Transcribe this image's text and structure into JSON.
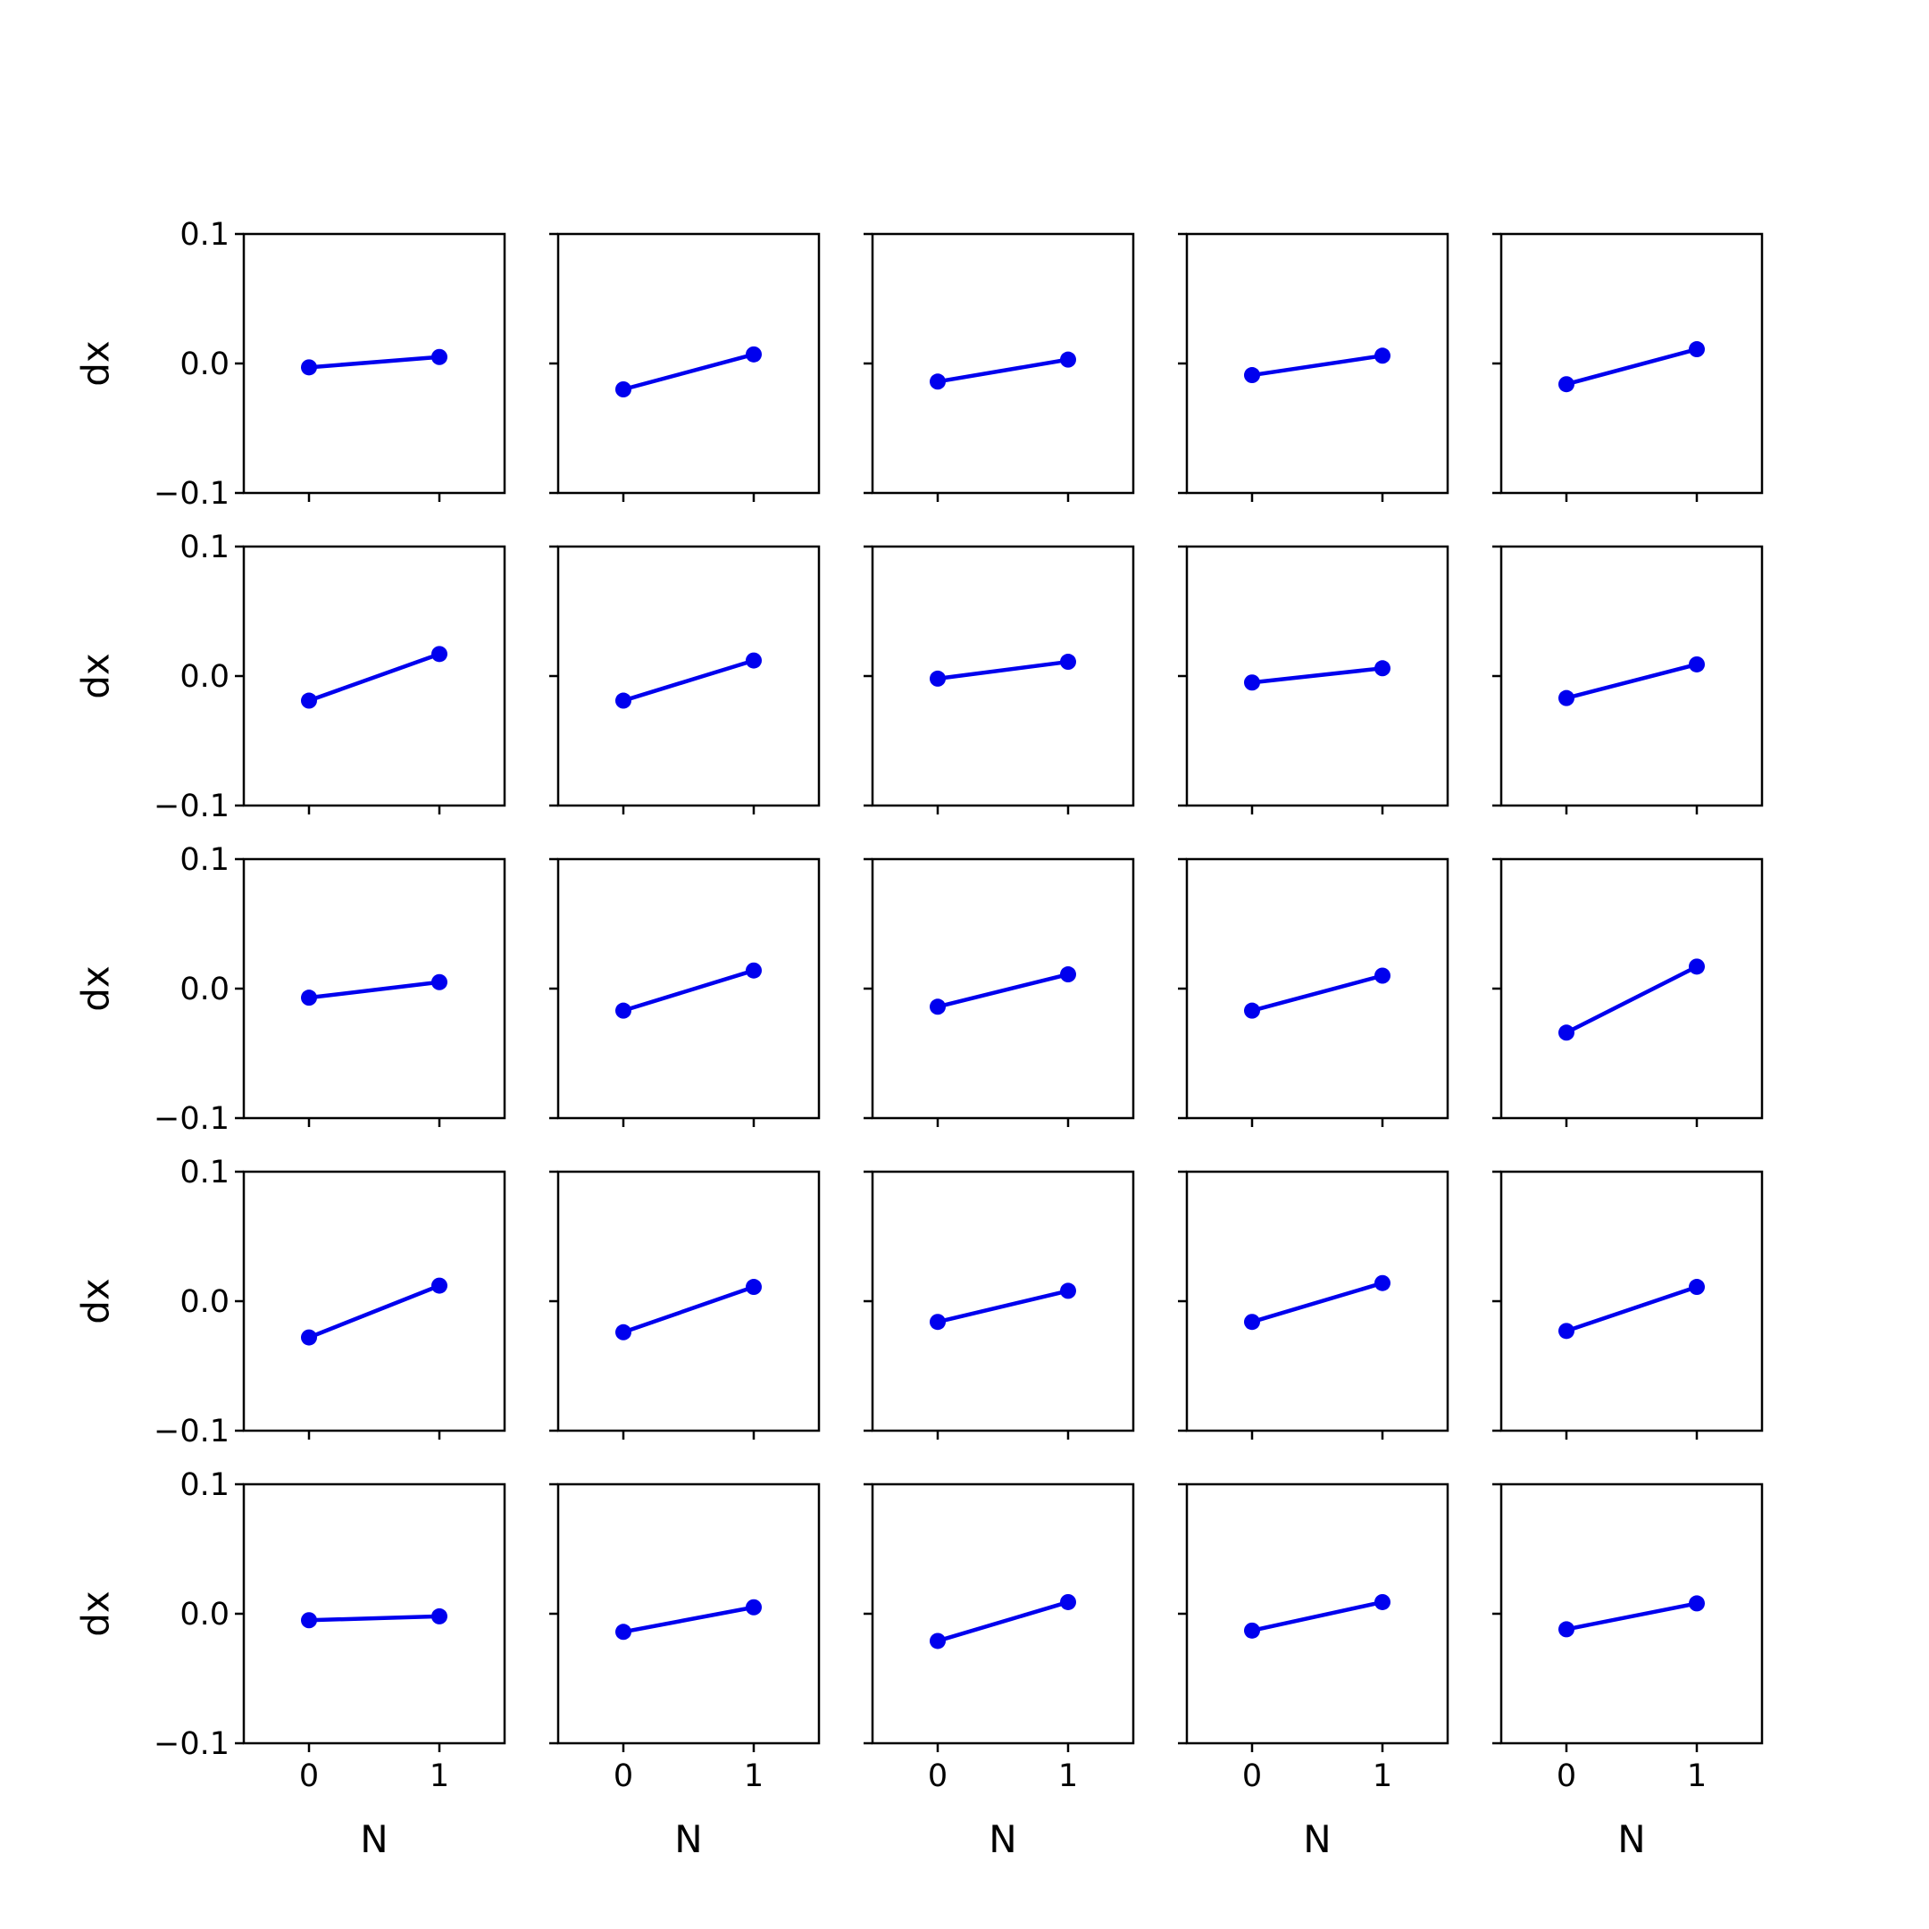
{
  "chart_data": {
    "type": "line",
    "grid": {
      "rows": 5,
      "cols": 5
    },
    "shared_x": true,
    "shared_y": true,
    "xlabel": "N",
    "ylabel": "dx",
    "xlim": [
      -0.5,
      1.5
    ],
    "ylim": [
      -0.1,
      0.1
    ],
    "xticks": [
      0,
      1
    ],
    "xtick_labels": [
      "0",
      "1"
    ],
    "yticks": [
      -0.1,
      0.0,
      0.1
    ],
    "ytick_labels": [
      "−0.1",
      "0.0",
      "0.1"
    ],
    "grid_lines": false,
    "line_color": "#0000ee",
    "marker": "circle",
    "panels": [
      {
        "x": [
          0,
          1
        ],
        "y": [
          -0.003,
          0.005
        ]
      },
      {
        "x": [
          0,
          1
        ],
        "y": [
          -0.02,
          0.007
        ]
      },
      {
        "x": [
          0,
          1
        ],
        "y": [
          -0.014,
          0.003
        ]
      },
      {
        "x": [
          0,
          1
        ],
        "y": [
          -0.009,
          0.006
        ]
      },
      {
        "x": [
          0,
          1
        ],
        "y": [
          -0.016,
          0.011
        ]
      },
      {
        "x": [
          0,
          1
        ],
        "y": [
          -0.019,
          0.017
        ]
      },
      {
        "x": [
          0,
          1
        ],
        "y": [
          -0.019,
          0.012
        ]
      },
      {
        "x": [
          0,
          1
        ],
        "y": [
          -0.002,
          0.011
        ]
      },
      {
        "x": [
          0,
          1
        ],
        "y": [
          -0.005,
          0.006
        ]
      },
      {
        "x": [
          0,
          1
        ],
        "y": [
          -0.017,
          0.009
        ]
      },
      {
        "x": [
          0,
          1
        ],
        "y": [
          -0.007,
          0.005
        ]
      },
      {
        "x": [
          0,
          1
        ],
        "y": [
          -0.017,
          0.014
        ]
      },
      {
        "x": [
          0,
          1
        ],
        "y": [
          -0.014,
          0.011
        ]
      },
      {
        "x": [
          0,
          1
        ],
        "y": [
          -0.017,
          0.01
        ]
      },
      {
        "x": [
          0,
          1
        ],
        "y": [
          -0.034,
          0.017
        ]
      },
      {
        "x": [
          0,
          1
        ],
        "y": [
          -0.028,
          0.012
        ]
      },
      {
        "x": [
          0,
          1
        ],
        "y": [
          -0.024,
          0.011
        ]
      },
      {
        "x": [
          0,
          1
        ],
        "y": [
          -0.016,
          0.008
        ]
      },
      {
        "x": [
          0,
          1
        ],
        "y": [
          -0.016,
          0.014
        ]
      },
      {
        "x": [
          0,
          1
        ],
        "y": [
          -0.023,
          0.011
        ]
      },
      {
        "x": [
          0,
          1
        ],
        "y": [
          -0.005,
          -0.002
        ]
      },
      {
        "x": [
          0,
          1
        ],
        "y": [
          -0.014,
          0.005
        ]
      },
      {
        "x": [
          0,
          1
        ],
        "y": [
          -0.021,
          0.009
        ]
      },
      {
        "x": [
          0,
          1
        ],
        "y": [
          -0.013,
          0.009
        ]
      },
      {
        "x": [
          0,
          1
        ],
        "y": [
          -0.012,
          0.008
        ]
      }
    ]
  }
}
